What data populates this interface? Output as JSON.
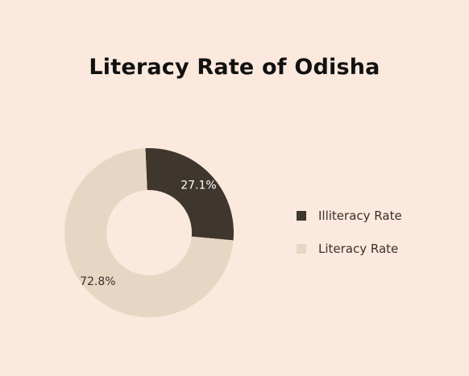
{
  "chart_data": {
    "type": "pie",
    "title": "Literacy Rate of Odisha",
    "categories": [
      "Illiteracy Rate",
      "Literacy Rate"
    ],
    "values": [
      27.1,
      72.8
    ],
    "data_labels": [
      "27.1%",
      "72.8%"
    ],
    "colors": [
      "#3f362d",
      "#e8d6c4"
    ],
    "background": "#fae9dc",
    "hole": "donut",
    "legend_position": "right"
  }
}
